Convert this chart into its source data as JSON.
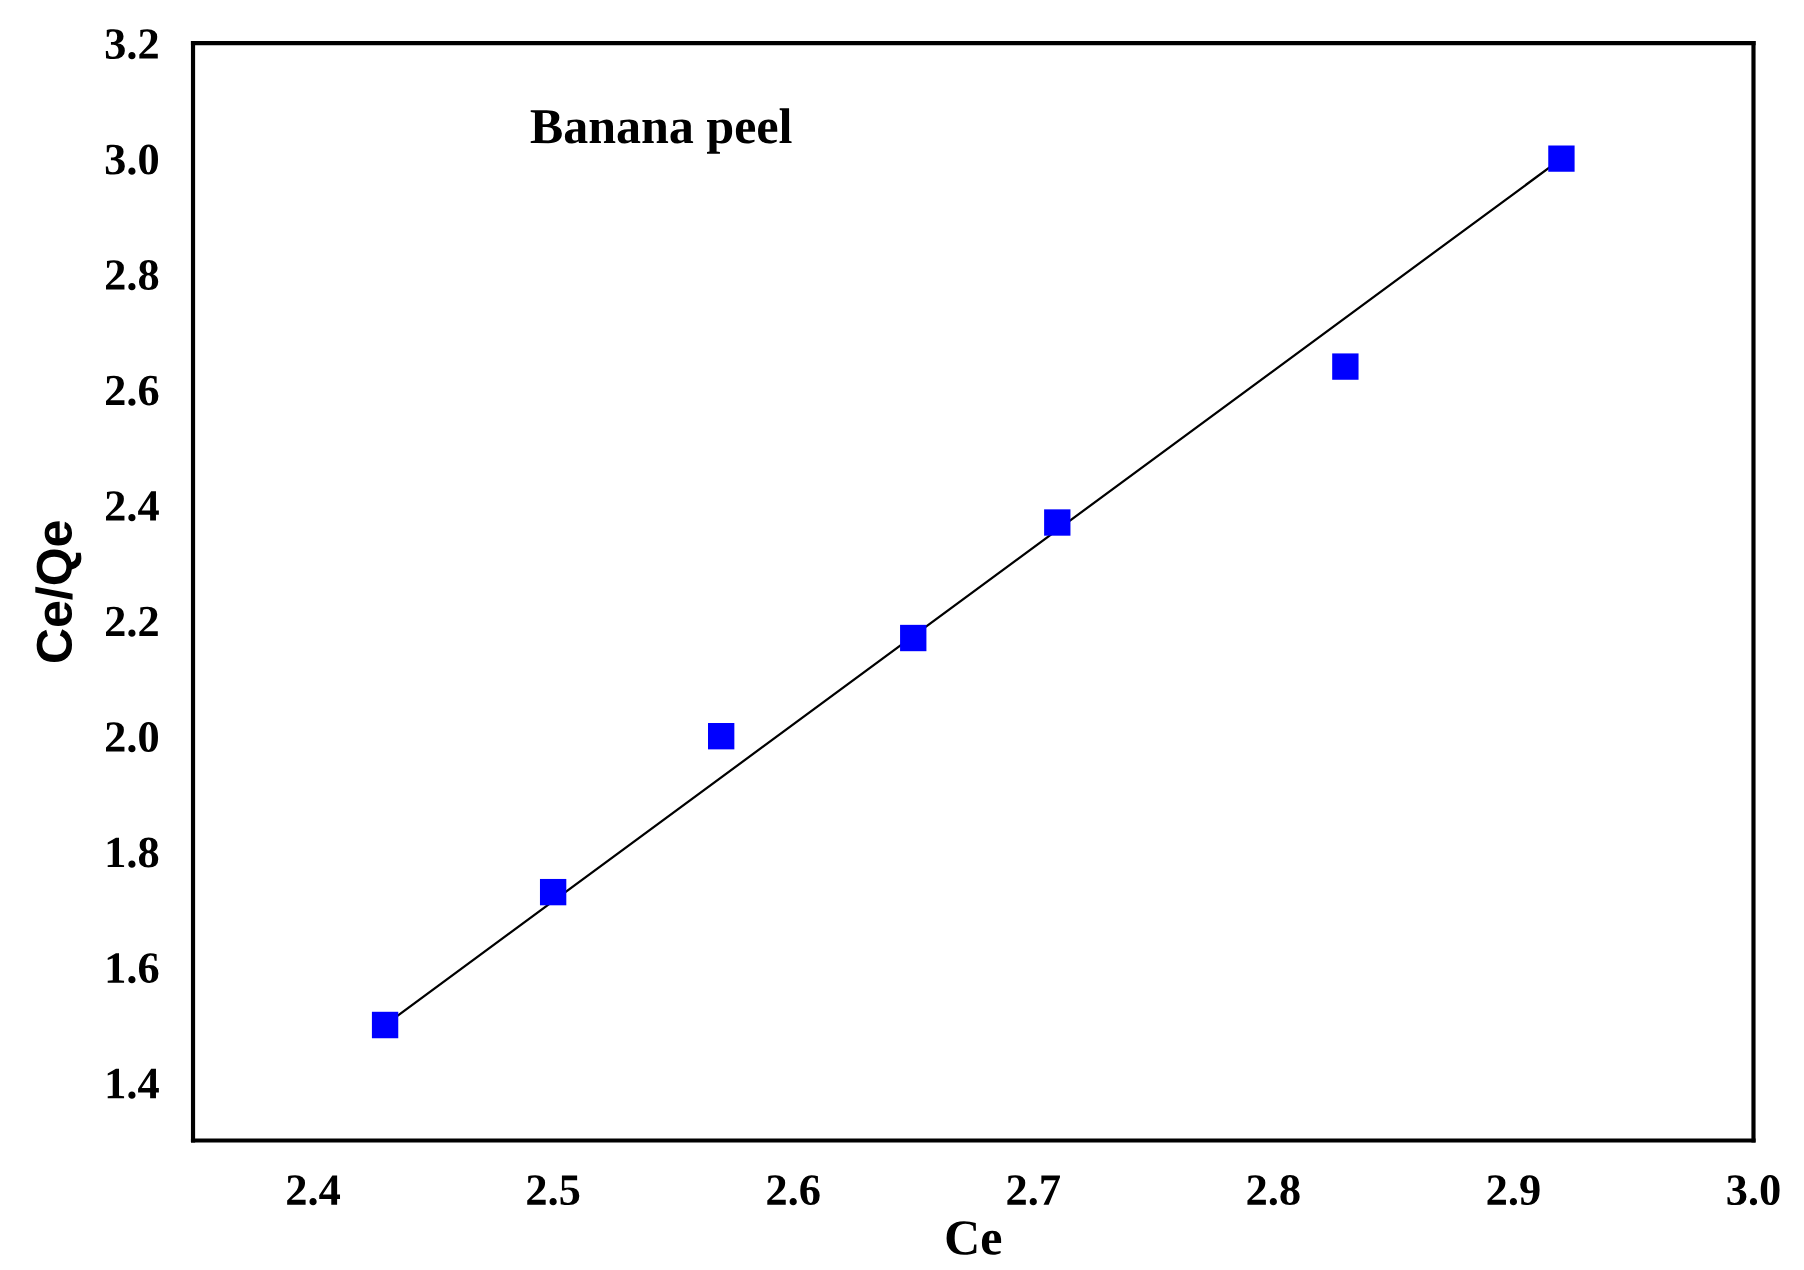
{
  "chart_data": {
    "type": "scatter",
    "xlabel": "Ce",
    "ylabel": "Ce/Qe",
    "annotations": [
      "Banana peel"
    ],
    "xlim": [
      2.35,
      3.0
    ],
    "ylim": [
      1.3,
      3.2
    ],
    "xticks": [
      {
        "value": 2.4,
        "label": "2.4"
      },
      {
        "value": 2.5,
        "label": "2.5"
      },
      {
        "value": 2.6,
        "label": "2.6"
      },
      {
        "value": 2.7,
        "label": "2.7"
      },
      {
        "value": 2.8,
        "label": "2.8"
      },
      {
        "value": 2.9,
        "label": "2.9"
      },
      {
        "value": 3.0,
        "label": "3.0"
      }
    ],
    "yticks": [
      {
        "value": 1.4,
        "label": "1.4"
      },
      {
        "value": 1.6,
        "label": "1.6"
      },
      {
        "value": 1.8,
        "label": "1.8"
      },
      {
        "value": 2.0,
        "label": "2.0"
      },
      {
        "value": 2.2,
        "label": "2.2"
      },
      {
        "value": 2.4,
        "label": "2.4"
      },
      {
        "value": 2.6,
        "label": "2.6"
      },
      {
        "value": 2.8,
        "label": "2.8"
      },
      {
        "value": 3.0,
        "label": "3.0"
      },
      {
        "value": 3.2,
        "label": "3.2"
      }
    ],
    "grid": false,
    "legend": false,
    "series": [
      {
        "color": "#0000ff",
        "marker": "square",
        "x": [
          2.43,
          2.5,
          2.57,
          2.65,
          2.71,
          2.83,
          2.92
        ],
        "values": [
          1.5,
          1.73,
          2.0,
          2.17,
          2.37,
          2.64,
          3.0
        ]
      },
      {
        "type": "line",
        "color": "#000000",
        "x": [
          2.43,
          2.92
        ],
        "values": [
          1.5,
          3.0
        ],
        "line_style": "solid"
      }
    ]
  }
}
